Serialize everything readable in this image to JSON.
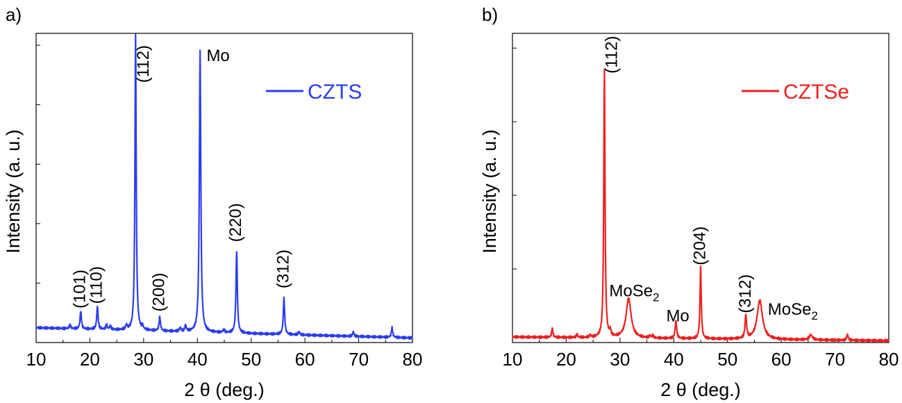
{
  "chart_data": [
    {
      "type": "line",
      "panel_label": "a)",
      "xlabel": "2 θ (deg.)",
      "ylabel": "Intensity (a. u.)",
      "xlim": [
        10,
        80
      ],
      "ylim": [
        0,
        100
      ],
      "xticks": [
        10,
        20,
        30,
        40,
        50,
        60,
        70,
        80
      ],
      "legend_position": "top-right",
      "series": [
        {
          "name": "CZTS",
          "color": "#2b3ef0",
          "baseline": 4.8,
          "baseline_end": 1.5,
          "peaks": [
            {
              "x": 16.3,
              "h": 1.2,
              "w": 0.15
            },
            {
              "x": 18.3,
              "h": 5.8,
              "w": 0.15
            },
            {
              "x": 21.4,
              "h": 7.4,
              "w": 0.15
            },
            {
              "x": 23.1,
              "h": 1.5,
              "w": 0.15
            },
            {
              "x": 23.8,
              "h": 1.2,
              "w": 0.15
            },
            {
              "x": 26.8,
              "h": 1.5,
              "w": 0.15
            },
            {
              "x": 28.5,
              "h": 95.5,
              "w": 0.14
            },
            {
              "x": 29.8,
              "h": 1.0,
              "w": 0.15
            },
            {
              "x": 33.0,
              "h": 4.6,
              "w": 0.15
            },
            {
              "x": 36.8,
              "h": 1.2,
              "w": 0.15
            },
            {
              "x": 37.8,
              "h": 2.0,
              "w": 0.15
            },
            {
              "x": 40.5,
              "h": 91.2,
              "w": 0.16
            },
            {
              "x": 44.9,
              "h": 1.0,
              "w": 0.15
            },
            {
              "x": 47.3,
              "h": 26.6,
              "w": 0.15
            },
            {
              "x": 56.1,
              "h": 11.8,
              "w": 0.15
            },
            {
              "x": 58.9,
              "h": 1.1,
              "w": 0.15
            },
            {
              "x": 69.0,
              "h": 1.5,
              "w": 0.15
            },
            {
              "x": 76.2,
              "h": 3.1,
              "w": 0.15
            }
          ]
        }
      ],
      "annotations": [
        {
          "text": "(101)",
          "x": 18.3,
          "y": 11,
          "rotate": true
        },
        {
          "text": "(110)",
          "x": 21.4,
          "y": 12.5,
          "rotate": true
        },
        {
          "text": "(112)",
          "x": 30.1,
          "y": 84,
          "rotate": true
        },
        {
          "text": "(200)",
          "x": 33.0,
          "y": 10,
          "rotate": true
        },
        {
          "text": "Mo",
          "x": 41.7,
          "y": 91,
          "rotate": false
        },
        {
          "text": "(220)",
          "x": 47.3,
          "y": 32.5,
          "rotate": true
        },
        {
          "text": "(312)",
          "x": 56.1,
          "y": 17.5,
          "rotate": true
        }
      ]
    },
    {
      "type": "line",
      "panel_label": "b)",
      "xlabel": "2 θ (deg.)",
      "ylabel": "Intensity (a. u.)",
      "xlim": [
        10,
        80
      ],
      "ylim": [
        0,
        100
      ],
      "xticks": [
        10,
        20,
        30,
        40,
        50,
        60,
        70,
        80
      ],
      "legend_position": "top-right",
      "series": [
        {
          "name": "CZTSe",
          "color": "#ee2020",
          "baseline": 1.8,
          "baseline_end": 0.6,
          "peaks": [
            {
              "x": 17.4,
              "h": 2.9,
              "w": 0.14
            },
            {
              "x": 22.0,
              "h": 1.0,
              "w": 0.14
            },
            {
              "x": 24.5,
              "h": 0.8,
              "w": 0.14
            },
            {
              "x": 27.1,
              "h": 86.5,
              "w": 0.14
            },
            {
              "x": 28.2,
              "h": 1.8,
              "w": 0.14
            },
            {
              "x": 31.6,
              "h": 12.8,
              "w": 0.55
            },
            {
              "x": 35.6,
              "h": 0.8,
              "w": 0.14
            },
            {
              "x": 36.1,
              "h": 0.8,
              "w": 0.14
            },
            {
              "x": 40.4,
              "h": 5.6,
              "w": 0.17
            },
            {
              "x": 45.0,
              "h": 23.1,
              "w": 0.14
            },
            {
              "x": 53.4,
              "h": 7.4,
              "w": 0.17
            },
            {
              "x": 56.0,
              "h": 12.6,
              "w": 0.6
            },
            {
              "x": 65.5,
              "h": 1.6,
              "w": 0.35
            },
            {
              "x": 72.3,
              "h": 1.9,
              "w": 0.16
            }
          ]
        }
      ],
      "annotations": [
        {
          "text": "(112)",
          "x": 28.6,
          "y": 87,
          "rotate": true
        },
        {
          "text": "MoSe",
          "sub": "2",
          "x": 28.0,
          "y": 15,
          "rotate": false
        },
        {
          "text": "Mo",
          "x": 38.6,
          "y": 6.8,
          "rotate": false
        },
        {
          "text": "(204)",
          "x": 45.0,
          "y": 25,
          "rotate": true
        },
        {
          "text": "(312)",
          "x": 53.5,
          "y": 9.5,
          "rotate": true
        },
        {
          "text": "MoSe",
          "sub": "2",
          "x": 57.5,
          "y": 9.0,
          "rotate": false
        }
      ]
    }
  ]
}
